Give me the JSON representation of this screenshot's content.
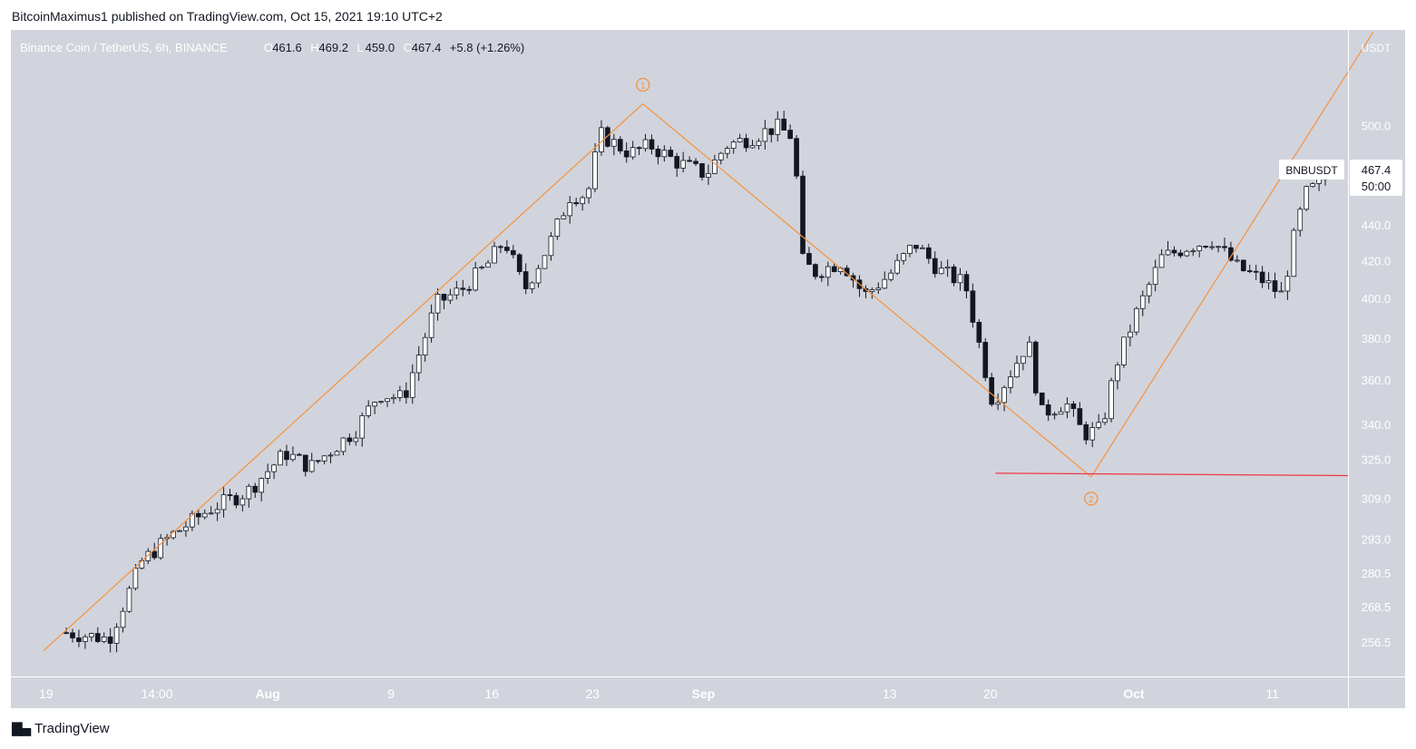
{
  "header": {
    "publisher_line": "BitcoinMaximus1 published on TradingView.com, Oct 15, 2021 19:10 UTC+2"
  },
  "footer": {
    "brand_icon": "tradingview-logo-icon",
    "brand": "TradingView"
  },
  "colors": {
    "plot_bg": "#d1d4dc",
    "candle": "#131722",
    "wave_line": "#f7913d",
    "support_line": "#f23645",
    "axis_text": "#ffffff",
    "price_label_bg": "#ffffff"
  },
  "chart_data": {
    "type": "candlestick",
    "symbol_title": "Binance Coin / TetherUS, 6h, BINANCE",
    "ohlc_labels": {
      "o": "O",
      "h": "H",
      "l": "L",
      "c": "C"
    },
    "ohlc_values": {
      "open": "461.6",
      "high": "469.2",
      "low": "459.0",
      "close": "467.4"
    },
    "change": "+5.8 (+1.26%)",
    "currency": "USDT",
    "y_scale": "log",
    "ylim": [
      248,
      560
    ],
    "y_ticks": [
      "500.0",
      "440.0",
      "420.0",
      "400.0",
      "380.0",
      "360.0",
      "340.0",
      "325.0",
      "309.0",
      "293.0",
      "280.5",
      "268.5",
      "256.5"
    ],
    "x_ticks": [
      {
        "label": "19",
        "t": 0
      },
      {
        "label": "14:00",
        "t": 4.4
      },
      {
        "label": "Aug",
        "t": 8.8
      },
      {
        "label": "9",
        "t": 13.7
      },
      {
        "label": "16",
        "t": 17.7
      },
      {
        "label": "23",
        "t": 21.7
      },
      {
        "label": "Sep",
        "t": 26.1
      },
      {
        "label": "13",
        "t": 33.5
      },
      {
        "label": "20",
        "t": 37.5
      },
      {
        "label": "Oct",
        "t": 43.2
      },
      {
        "label": "11",
        "t": 48.7
      }
    ],
    "x_range_days": [
      -1.4,
      51.7
    ],
    "last_price_label": "467.4",
    "countdown_label": "50:00",
    "symbol_tag": "BNBUSDT",
    "path_points": [
      {
        "t": 0.8,
        "p": 260
      },
      {
        "t": 2.5,
        "p": 258
      },
      {
        "t": 3.8,
        "p": 285
      },
      {
        "t": 5.0,
        "p": 295
      },
      {
        "t": 6.5,
        "p": 305
      },
      {
        "t": 8.0,
        "p": 312
      },
      {
        "t": 9.5,
        "p": 328
      },
      {
        "t": 10.5,
        "p": 322
      },
      {
        "t": 12.3,
        "p": 338
      },
      {
        "t": 13.2,
        "p": 354
      },
      {
        "t": 14.2,
        "p": 352
      },
      {
        "t": 15.5,
        "p": 398
      },
      {
        "t": 16.5,
        "p": 405
      },
      {
        "t": 17.5,
        "p": 418
      },
      {
        "t": 18.2,
        "p": 432
      },
      {
        "t": 19.0,
        "p": 405
      },
      {
        "t": 20.0,
        "p": 430
      },
      {
        "t": 20.8,
        "p": 457
      },
      {
        "t": 21.5,
        "p": 458
      },
      {
        "t": 22.0,
        "p": 495
      },
      {
        "t": 23.2,
        "p": 483
      },
      {
        "t": 24.0,
        "p": 488
      },
      {
        "t": 25.0,
        "p": 478
      },
      {
        "t": 26.2,
        "p": 470
      },
      {
        "t": 27.0,
        "p": 488
      },
      {
        "t": 28.0,
        "p": 493
      },
      {
        "t": 29.0,
        "p": 500
      },
      {
        "t": 29.7,
        "p": 493
      },
      {
        "t": 30.0,
        "p": 421
      },
      {
        "t": 30.5,
        "p": 414
      },
      {
        "t": 31.6,
        "p": 420
      },
      {
        "t": 32.5,
        "p": 402
      },
      {
        "t": 33.5,
        "p": 413
      },
      {
        "t": 34.5,
        "p": 430
      },
      {
        "t": 35.5,
        "p": 415
      },
      {
        "t": 36.5,
        "p": 408
      },
      {
        "t": 37.1,
        "p": 375
      },
      {
        "t": 37.6,
        "p": 350
      },
      {
        "t": 38.5,
        "p": 368
      },
      {
        "t": 39.0,
        "p": 379
      },
      {
        "t": 39.5,
        "p": 345
      },
      {
        "t": 40.5,
        "p": 350
      },
      {
        "t": 41.2,
        "p": 336
      },
      {
        "t": 41.9,
        "p": 338
      },
      {
        "t": 42.5,
        "p": 368
      },
      {
        "t": 43.3,
        "p": 393
      },
      {
        "t": 44.3,
        "p": 422
      },
      {
        "t": 45.3,
        "p": 428
      },
      {
        "t": 46.3,
        "p": 432
      },
      {
        "t": 47.3,
        "p": 417
      },
      {
        "t": 48.3,
        "p": 410
      },
      {
        "t": 49.1,
        "p": 402
      },
      {
        "t": 49.5,
        "p": 430
      },
      {
        "t": 50.0,
        "p": 458
      },
      {
        "t": 50.8,
        "p": 467.4
      }
    ],
    "annotations": {
      "wave_label_1": "1",
      "wave_label_2": "2",
      "wave_line": [
        {
          "t": -0.1,
          "p": 254
        },
        {
          "t": 23.7,
          "p": 515
        },
        {
          "t": 41.5,
          "p": 318
        },
        {
          "t": 52.7,
          "p": 565
        }
      ],
      "wave_1_anchor": {
        "t": 23.7,
        "p": 515
      },
      "wave_2_anchor": {
        "t": 41.5,
        "p": 318
      },
      "support_line": [
        {
          "t": 37.7,
          "p": 319.5
        },
        {
          "t": 51.7,
          "p": 318.5
        }
      ]
    }
  }
}
